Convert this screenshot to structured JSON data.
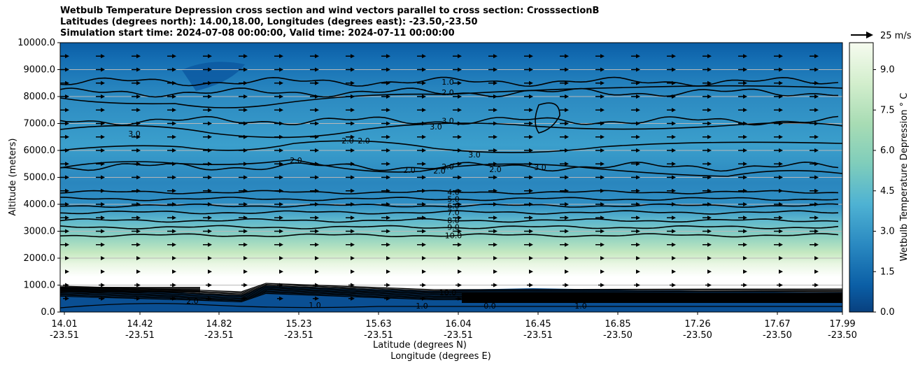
{
  "title_lines": [
    "Wetbulb Temperature Depression cross section and wind vectors parallel to cross section: CrosssectionB",
    "Latitudes (degrees north): 14.00,18.00, Longitudes (degrees east): -23.50,-23.50",
    "Simulation start time: 2024-07-08 00:00:00, Valid time: 2024-07-11 00:00:00"
  ],
  "chart_data": {
    "type": "contour",
    "ylabel": "Altitude (meters)",
    "xlabel_lat": "Latitude (degrees N)",
    "xlabel_lon": "Longitude (degrees E)",
    "ylim": [
      0,
      10000
    ],
    "y_ticks": [
      "0.0",
      "1000.0",
      "2000.0",
      "3000.0",
      "4000.0",
      "5000.0",
      "6000.0",
      "7000.0",
      "8000.0",
      "9000.0",
      "10000.0"
    ],
    "y_tick_values": [
      0,
      1000,
      2000,
      3000,
      4000,
      5000,
      6000,
      7000,
      8000,
      9000,
      10000
    ],
    "x_ticks": [
      {
        "lat": "14.01",
        "lon": "-23.51"
      },
      {
        "lat": "14.42",
        "lon": "-23.51"
      },
      {
        "lat": "14.82",
        "lon": "-23.51"
      },
      {
        "lat": "15.23",
        "lon": "-23.51"
      },
      {
        "lat": "15.63",
        "lon": "-23.51"
      },
      {
        "lat": "16.04",
        "lon": "-23.51"
      },
      {
        "lat": "16.45",
        "lon": "-23.51"
      },
      {
        "lat": "16.85",
        "lon": "-23.50"
      },
      {
        "lat": "17.26",
        "lon": "-23.50"
      },
      {
        "lat": "17.67",
        "lon": "-23.50"
      },
      {
        "lat": "17.99",
        "lon": "-23.50"
      }
    ],
    "y_grid": true,
    "colorbar": {
      "label": "Wetbulb Temperature Depression ° C",
      "range": [
        0,
        10
      ],
      "ticks": [
        "0.0",
        "1.5",
        "3.0",
        "4.5",
        "6.0",
        "7.5",
        "9.0"
      ],
      "tick_values": [
        0,
        1.5,
        3.0,
        4.5,
        6.0,
        7.5,
        9.0
      ]
    },
    "quiver_key": "25 m/s",
    "contour_lines": [
      {
        "level": "1.0",
        "altitude": 8550
      },
      {
        "level": "2.0",
        "altitude": 8150
      },
      {
        "level": "3.0",
        "altitude": 7100
      },
      {
        "level": "2.0",
        "altitude": 5400
      },
      {
        "level": "4.0",
        "altitude": 4450
      },
      {
        "level": "5.0",
        "altitude": 4200
      },
      {
        "level": "6.0",
        "altitude": 3950
      },
      {
        "level": "7.0",
        "altitude": 3700
      },
      {
        "level": "8.0",
        "altitude": 3400
      },
      {
        "level": "9.0",
        "altitude": 3150
      },
      {
        "level": "10.0",
        "altitude": 2850
      }
    ],
    "other_contour_labels": [
      "3.0",
      "3.0",
      "2.0",
      "2.0",
      "2.0",
      "3.0",
      "2.0",
      "2.0",
      "3.0",
      "2.0",
      "1.0",
      "1.0",
      "0.0",
      "1.0",
      "10.0",
      "2.0"
    ]
  }
}
